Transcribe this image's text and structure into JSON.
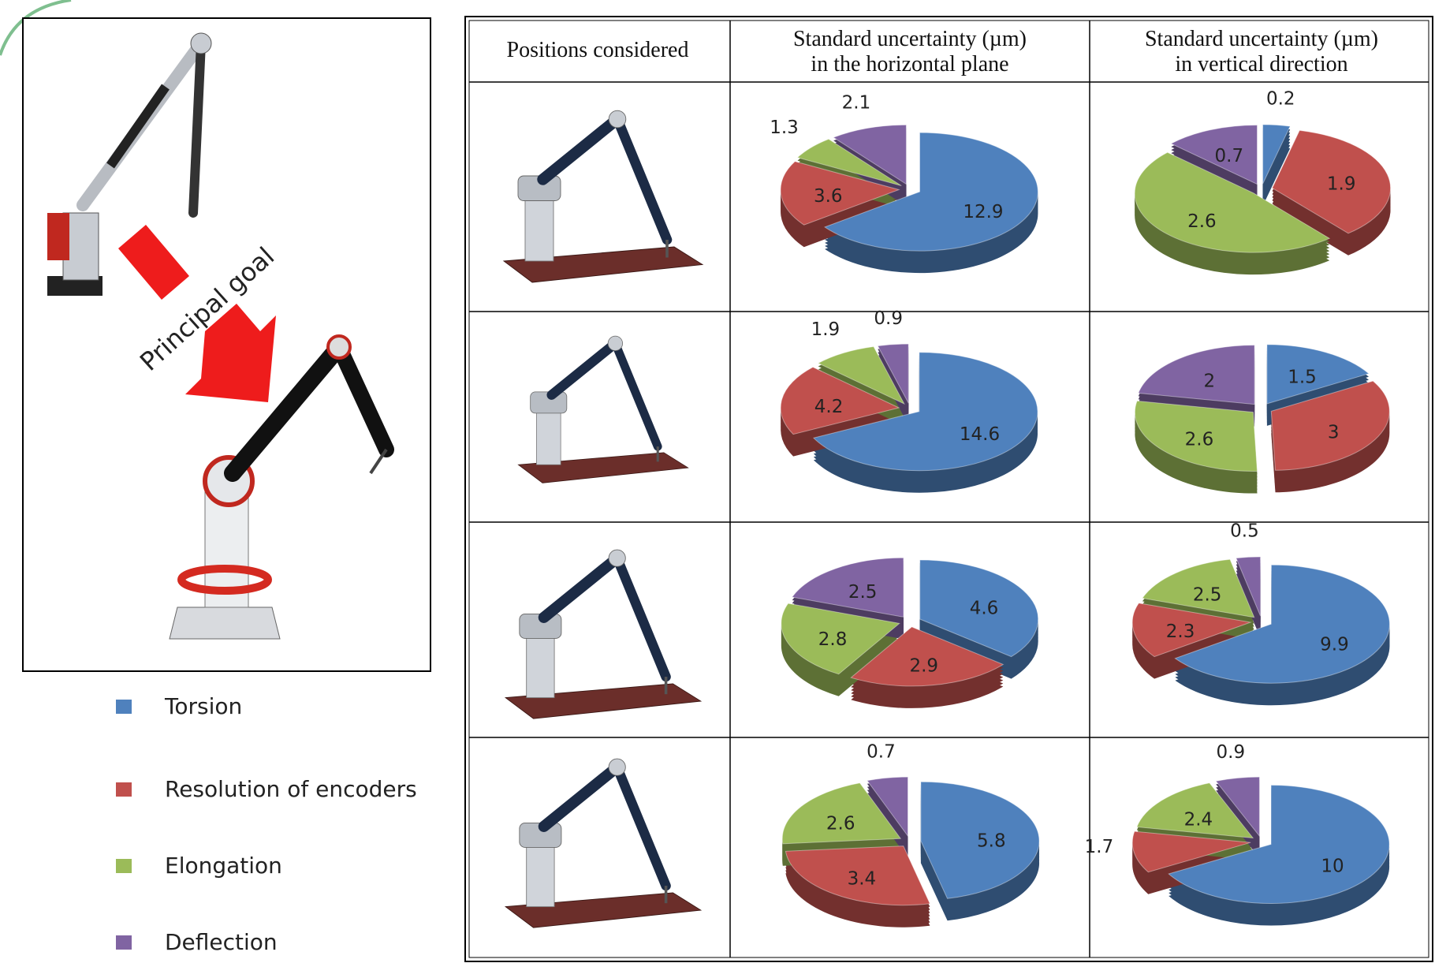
{
  "annotation": "Principal goal",
  "legend": {
    "items": [
      {
        "name": "Torsion",
        "color": "#4f81bd"
      },
      {
        "name": "Resolution of encoders",
        "color": "#c0504d"
      },
      {
        "name": "Elongation",
        "color": "#9bbb59"
      },
      {
        "name": "Deflection",
        "color": "#8064a2"
      }
    ]
  },
  "table": {
    "header": [
      [
        "Positions considered"
      ],
      [
        "Standard uncertainty (µm)",
        "in the horizontal plane"
      ],
      [
        "Standard uncertainty (µm)",
        "in vertical direction"
      ]
    ]
  },
  "chart_data": [
    {
      "type": "pie",
      "values": [
        12.9,
        3.6,
        1.3,
        2.1
      ]
    },
    {
      "type": "pie",
      "values": [
        0.2,
        1.9,
        2.6,
        0.7
      ]
    },
    {
      "type": "pie",
      "values": [
        14.6,
        4.2,
        1.9,
        0.9
      ]
    },
    {
      "type": "pie",
      "values": [
        1.5,
        3,
        2.6,
        2
      ]
    },
    {
      "type": "pie",
      "values": [
        4.6,
        2.9,
        2.8,
        2.5
      ]
    },
    {
      "type": "pie",
      "values": [
        9.9,
        2.3,
        2.5,
        0.5
      ]
    },
    {
      "type": "pie",
      "values": [
        5.8,
        3.4,
        2.6,
        0.7
      ]
    },
    {
      "type": "pie",
      "values": [
        10,
        1.7,
        2.4,
        0.9
      ]
    }
  ]
}
